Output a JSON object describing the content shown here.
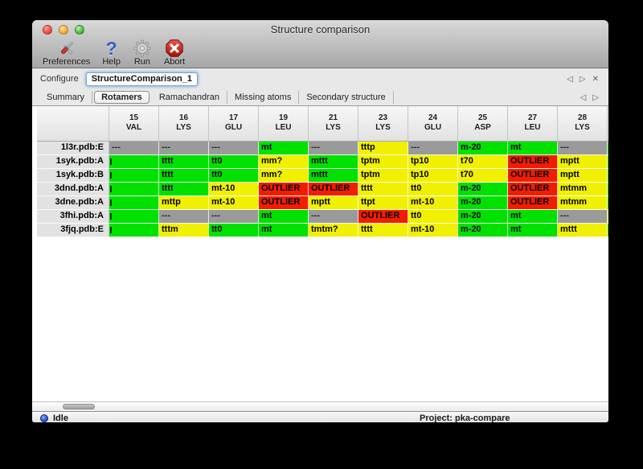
{
  "window": {
    "title": "Structure comparison"
  },
  "toolbar": {
    "items": [
      {
        "label": "Preferences",
        "icon": "preferences-tools-icon"
      },
      {
        "label": "Help",
        "icon": "help-question-icon"
      },
      {
        "label": "Run",
        "icon": "run-gear-icon"
      },
      {
        "label": "Abort",
        "icon": "abort-stop-icon"
      }
    ]
  },
  "configure": {
    "label": "Configure",
    "value": "StructureComparison_1",
    "nav": {
      "back": "◁",
      "forward": "▷",
      "close": "✕"
    }
  },
  "tabs": {
    "active": "Rotamers",
    "items": [
      "Summary",
      "Rotamers",
      "Ramachandran",
      "Missing atoms",
      "Secondary structure"
    ],
    "nav": {
      "back": "◁",
      "forward": "▷"
    }
  },
  "table": {
    "columns": [
      {
        "num": "15",
        "res": "VAL"
      },
      {
        "num": "16",
        "res": "LYS"
      },
      {
        "num": "17",
        "res": "GLU"
      },
      {
        "num": "19",
        "res": "LEU"
      },
      {
        "num": "21",
        "res": "LYS"
      },
      {
        "num": "23",
        "res": "LYS"
      },
      {
        "num": "24",
        "res": "GLU"
      },
      {
        "num": "25",
        "res": "ASP"
      },
      {
        "num": "27",
        "res": "LEU"
      },
      {
        "num": "28",
        "res": "LYS"
      }
    ],
    "rows": [
      {
        "label": "1l3r.pdb:E",
        "edge": "green",
        "cells": [
          {
            "t": "---",
            "c": "gray"
          },
          {
            "t": "---",
            "c": "gray"
          },
          {
            "t": "---",
            "c": "gray"
          },
          {
            "t": "mt",
            "c": "green"
          },
          {
            "t": "---",
            "c": "gray"
          },
          {
            "t": "tttp",
            "c": "yellow"
          },
          {
            "t": "---",
            "c": "gray"
          },
          {
            "t": "m-20",
            "c": "green"
          },
          {
            "t": "mt",
            "c": "green"
          },
          {
            "t": "---",
            "c": "gray"
          }
        ]
      },
      {
        "label": "1syk.pdb:A",
        "edge": "green",
        "cells": [
          {
            "t": "",
            "c": "green"
          },
          {
            "t": "tttt",
            "c": "green"
          },
          {
            "t": "tt0",
            "c": "green"
          },
          {
            "t": "mm?",
            "c": "yellow"
          },
          {
            "t": "mttt",
            "c": "green"
          },
          {
            "t": "tptm",
            "c": "yellow"
          },
          {
            "t": "tp10",
            "c": "yellow"
          },
          {
            "t": "t70",
            "c": "yellow"
          },
          {
            "t": "OUTLIER",
            "c": "red"
          },
          {
            "t": "mptt",
            "c": "yellow"
          }
        ]
      },
      {
        "label": "1syk.pdb:B",
        "edge": "green",
        "cells": [
          {
            "t": "",
            "c": "green"
          },
          {
            "t": "tttt",
            "c": "green"
          },
          {
            "t": "tt0",
            "c": "green"
          },
          {
            "t": "mm?",
            "c": "yellow"
          },
          {
            "t": "mttt",
            "c": "green"
          },
          {
            "t": "tptm",
            "c": "yellow"
          },
          {
            "t": "tp10",
            "c": "yellow"
          },
          {
            "t": "t70",
            "c": "yellow"
          },
          {
            "t": "OUTLIER",
            "c": "red"
          },
          {
            "t": "mptt",
            "c": "yellow"
          }
        ]
      },
      {
        "label": "3dnd.pdb:A",
        "edge": "green",
        "cells": [
          {
            "t": "",
            "c": "green"
          },
          {
            "t": "tttt",
            "c": "green"
          },
          {
            "t": "mt-10",
            "c": "yellow"
          },
          {
            "t": "OUTLIER",
            "c": "red"
          },
          {
            "t": "OUTLIER",
            "c": "red"
          },
          {
            "t": "tttt",
            "c": "yellow"
          },
          {
            "t": "tt0",
            "c": "yellow"
          },
          {
            "t": "m-20",
            "c": "green"
          },
          {
            "t": "OUTLIER",
            "c": "red"
          },
          {
            "t": "mtmm",
            "c": "yellow"
          }
        ]
      },
      {
        "label": "3dne.pdb:A",
        "edge": "green",
        "cells": [
          {
            "t": "",
            "c": "green"
          },
          {
            "t": "mttp",
            "c": "yellow"
          },
          {
            "t": "mt-10",
            "c": "yellow"
          },
          {
            "t": "OUTLIER",
            "c": "red"
          },
          {
            "t": "mptt",
            "c": "yellow"
          },
          {
            "t": "ttpt",
            "c": "yellow"
          },
          {
            "t": "mt-10",
            "c": "yellow"
          },
          {
            "t": "m-20",
            "c": "green"
          },
          {
            "t": "OUTLIER",
            "c": "red"
          },
          {
            "t": "mtmm",
            "c": "yellow"
          }
        ]
      },
      {
        "label": "3fhi.pdb:A",
        "edge": "yellow",
        "cells": [
          {
            "t": "",
            "c": "green"
          },
          {
            "t": "---",
            "c": "gray"
          },
          {
            "t": "---",
            "c": "gray"
          },
          {
            "t": "mt",
            "c": "green"
          },
          {
            "t": "---",
            "c": "gray"
          },
          {
            "t": "OUTLIER",
            "c": "red"
          },
          {
            "t": "tt0",
            "c": "yellow"
          },
          {
            "t": "m-20",
            "c": "green"
          },
          {
            "t": "mt",
            "c": "green"
          },
          {
            "t": "---",
            "c": "gray"
          }
        ]
      },
      {
        "label": "3fjq.pdb:E",
        "edge": "green",
        "cells": [
          {
            "t": "",
            "c": "green"
          },
          {
            "t": "tttm",
            "c": "yellow"
          },
          {
            "t": "tt0",
            "c": "green"
          },
          {
            "t": "mt",
            "c": "green"
          },
          {
            "t": "tmtm?",
            "c": "yellow"
          },
          {
            "t": "tttt",
            "c": "yellow"
          },
          {
            "t": "mt-10",
            "c": "yellow"
          },
          {
            "t": "m-20",
            "c": "green"
          },
          {
            "t": "mt",
            "c": "green"
          },
          {
            "t": "mttt",
            "c": "yellow"
          }
        ]
      }
    ]
  },
  "statusbar": {
    "status": "Idle",
    "project": "Project: pka-compare"
  },
  "colors": {
    "green": "#00e100",
    "yellow": "#f0f000",
    "red": "#f21d00",
    "gray": "#9a9a9a"
  }
}
